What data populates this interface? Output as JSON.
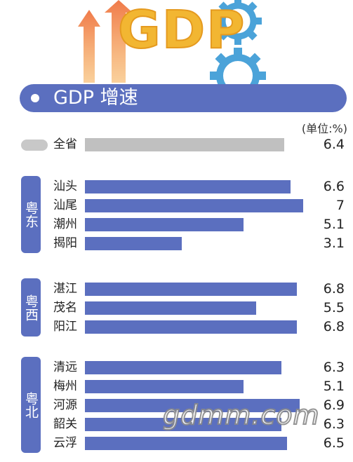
{
  "header": {
    "logo_text": "GDP",
    "logo_color": "#f2b632",
    "gear_color": "#4ba3d9",
    "arrow_color": "#f08a4b"
  },
  "title_bar": {
    "label": "GDP 增速",
    "color": "#5b6fbf"
  },
  "unit": "(单位:%)",
  "colors": {
    "province_bar": "#c0c0c0",
    "region_bar": "#5b6fbf"
  },
  "watermark": "gdmm.com",
  "chart_data": {
    "type": "bar",
    "orientation": "horizontal",
    "xlim": [
      0,
      7.3
    ],
    "province": {
      "label": "全省",
      "value": 6.4
    },
    "groups": [
      {
        "name": "粤东",
        "items": [
          {
            "label": "汕头",
            "value": 6.6
          },
          {
            "label": "汕尾",
            "value": 7
          },
          {
            "label": "潮州",
            "value": 5.1
          },
          {
            "label": "揭阳",
            "value": 3.1
          }
        ]
      },
      {
        "name": "粤西",
        "items": [
          {
            "label": "湛江",
            "value": 6.8
          },
          {
            "label": "茂名",
            "value": 5.5
          },
          {
            "label": "阳江",
            "value": 6.8
          }
        ]
      },
      {
        "name": "粤北",
        "items": [
          {
            "label": "清远",
            "value": 6.3
          },
          {
            "label": "梅州",
            "value": 5.1
          },
          {
            "label": "河源",
            "value": 6.9
          },
          {
            "label": "韶关",
            "value": 6.3
          },
          {
            "label": "云浮",
            "value": 6.5
          }
        ]
      }
    ]
  }
}
